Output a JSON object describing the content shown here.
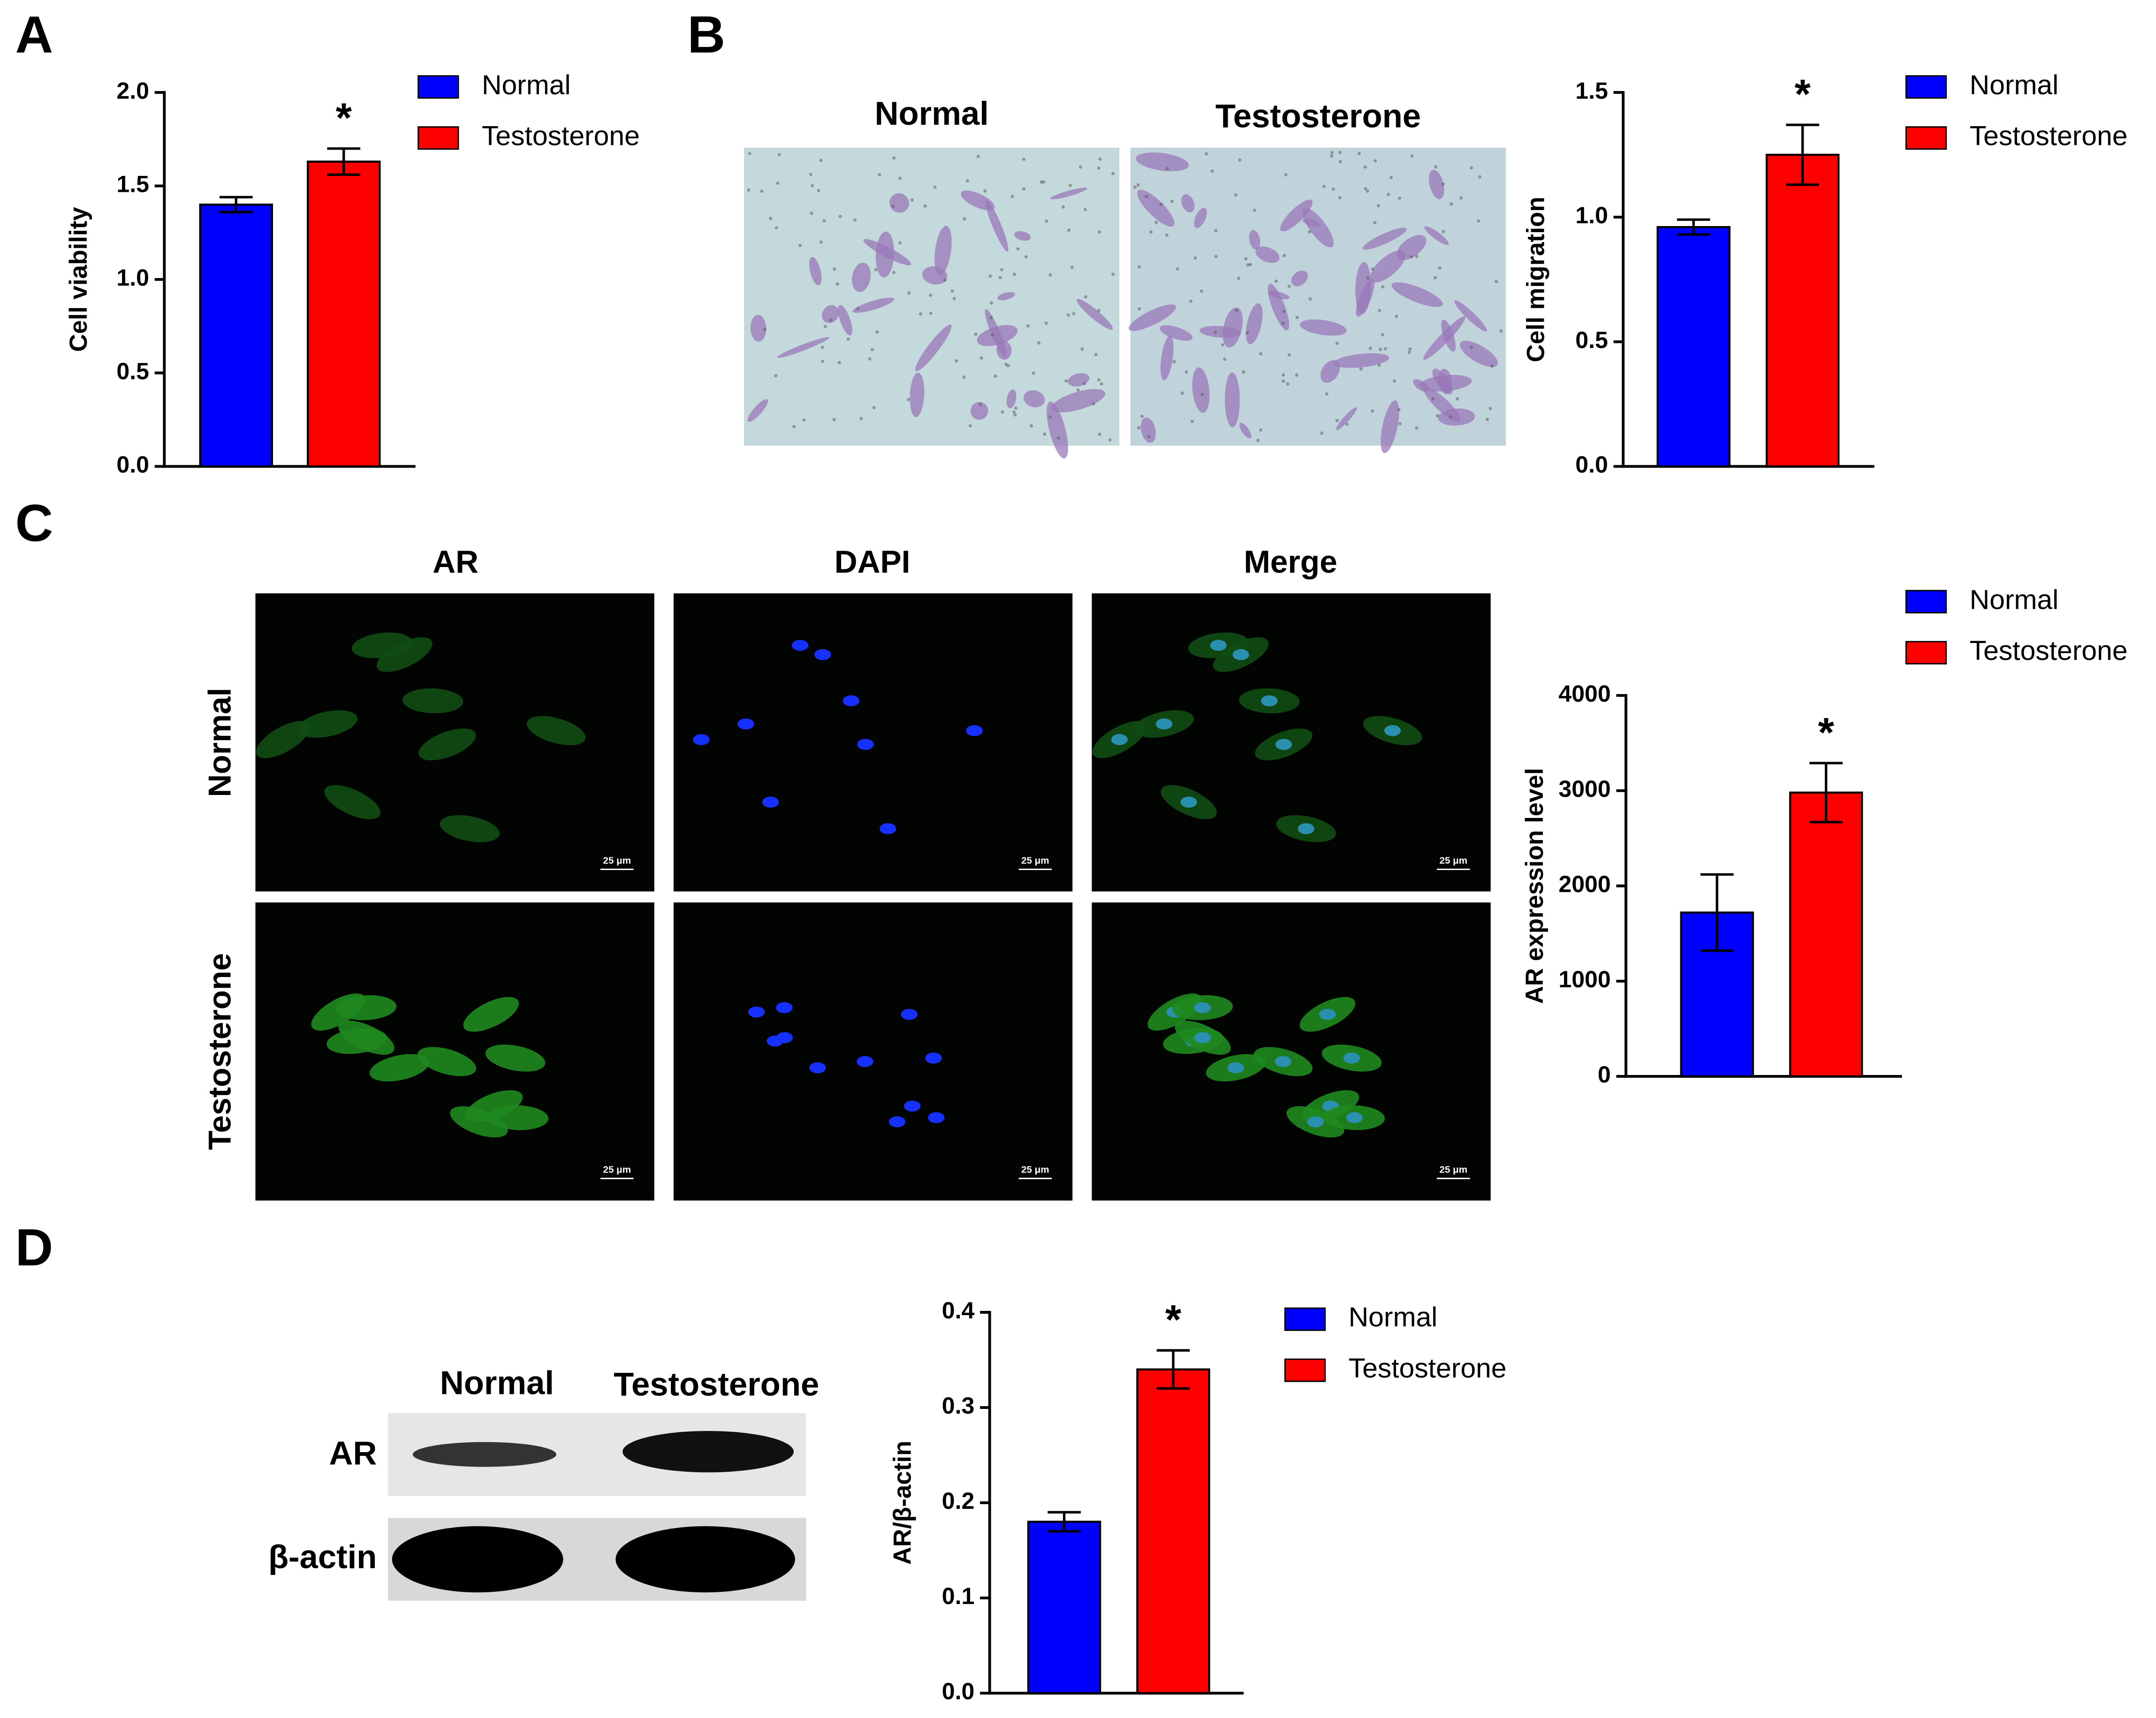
{
  "panel_labels": [
    "A",
    "B",
    "C",
    "D"
  ],
  "migration_images": {
    "columns": [
      "Normal",
      "Testosterone"
    ]
  },
  "fluorescence": {
    "columns": [
      "AR",
      "DAPI",
      "Merge"
    ],
    "rows": [
      "Normal",
      "Testosterone"
    ],
    "scale_bar": "25 μm"
  },
  "blot": {
    "columns": [
      "Normal",
      "Testosterone"
    ],
    "rows": [
      "AR",
      "β-actin"
    ]
  },
  "chart_data": [
    {
      "type": "bar",
      "y_label": "Cell viability",
      "categories": [
        null
      ],
      "significance": "*",
      "series": [
        {
          "name": "Normal",
          "color": "#0000ff",
          "values": [
            1.4
          ],
          "errors": [
            0.04
          ]
        },
        {
          "name": "Testosterone",
          "color": "#ff0000",
          "values": [
            1.63
          ],
          "errors": [
            0.07
          ]
        }
      ],
      "ylim": [
        0,
        2
      ],
      "yticks": [
        {
          "value": 0,
          "label": "0.0"
        },
        0.5,
        {
          "value": 1,
          "label": "1.0"
        },
        1.5,
        {
          "value": 2,
          "label": "2.0"
        }
      ]
    },
    {
      "type": "bar",
      "y_label": "Cell migration",
      "categories": [
        null
      ],
      "significance": "*",
      "series": [
        {
          "name": "Normal",
          "color": "#0000ff",
          "values": [
            0.96
          ],
          "errors": [
            0.03
          ]
        },
        {
          "name": "Testosterone",
          "color": "#ff0000",
          "values": [
            1.25
          ],
          "errors": [
            0.12
          ]
        }
      ],
      "ylim": [
        0,
        1.5
      ],
      "yticks": [
        {
          "value": 0,
          "label": "0.0"
        },
        0.5,
        {
          "value": 1,
          "label": "1.0"
        },
        1.5
      ]
    },
    {
      "type": "bar",
      "y_label": "AR expression level",
      "categories": [
        null
      ],
      "significance": "*",
      "series": [
        {
          "name": "Normal",
          "color": "#0000ff",
          "values": [
            1720
          ],
          "errors": [
            400
          ]
        },
        {
          "name": "Testosterone",
          "color": "#ff0000",
          "values": [
            2980
          ],
          "errors": [
            310
          ]
        }
      ],
      "ylim": [
        0,
        4000
      ],
      "yticks": [
        0,
        1000,
        2000,
        3000,
        4000
      ]
    },
    {
      "type": "bar",
      "y_label": "AR/β-actin",
      "categories": [
        null
      ],
      "significance": "*",
      "series": [
        {
          "name": "Normal",
          "color": "#0000ff",
          "values": [
            0.18
          ],
          "errors": [
            0.01
          ]
        },
        {
          "name": "Testosterone",
          "color": "#ff0000",
          "values": [
            0.34
          ],
          "errors": [
            0.02
          ]
        }
      ],
      "ylim": [
        0,
        0.4
      ],
      "yticks": [
        {
          "value": 0,
          "label": "0.0"
        },
        0.1,
        0.2,
        0.3,
        0.4
      ]
    }
  ]
}
